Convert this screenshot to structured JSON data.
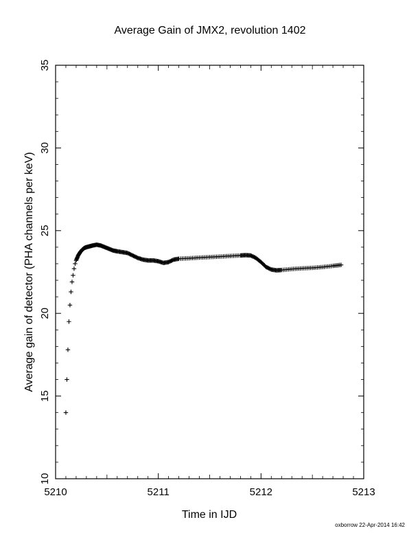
{
  "chart_data": {
    "type": "scatter",
    "title": "Average Gain of JMX2, revolution 1402",
    "xlabel": "Time in IJD",
    "ylabel": "Average gain of detector (PHA channels per keV)",
    "xlim": [
      5210,
      5213
    ],
    "ylim": [
      10,
      35
    ],
    "x_ticks": [
      5210,
      5211,
      5212,
      5213
    ],
    "y_ticks": [
      10,
      15,
      20,
      25,
      30,
      35
    ],
    "x_tick_labels": [
      "5210",
      "5211",
      "5212",
      "5213"
    ],
    "y_tick_labels": [
      "10",
      "15",
      "20",
      "25",
      "30",
      "35"
    ],
    "grid": false,
    "marker": "+",
    "series": [
      {
        "x": [
          5210.1,
          5210.11,
          5210.12,
          5210.13,
          5210.14,
          5210.15,
          5210.16,
          5210.17,
          5210.18,
          5210.19,
          5210.2,
          5210.22,
          5210.24,
          5210.26,
          5210.28,
          5210.3,
          5210.33,
          5210.36,
          5210.4,
          5210.44,
          5210.48,
          5210.52,
          5210.56,
          5210.6,
          5210.65,
          5210.7,
          5210.75,
          5210.8,
          5210.85,
          5210.9,
          5210.95,
          5211.0,
          5211.05,
          5211.1,
          5211.15,
          5211.2,
          5211.3,
          5211.4,
          5211.5,
          5211.6,
          5211.7,
          5211.8,
          5211.85,
          5211.9,
          5211.95,
          5212.0,
          5212.05,
          5212.1,
          5212.15,
          5212.2,
          5212.3,
          5212.4,
          5212.5,
          5212.6,
          5212.7,
          5212.78
        ],
        "y": [
          14.0,
          16.0,
          17.8,
          19.5,
          20.5,
          21.3,
          21.9,
          22.3,
          22.7,
          23.0,
          23.2,
          23.5,
          23.7,
          23.85,
          23.95,
          24.0,
          24.05,
          24.1,
          24.15,
          24.1,
          24.0,
          23.9,
          23.8,
          23.75,
          23.7,
          23.65,
          23.5,
          23.35,
          23.25,
          23.2,
          23.2,
          23.15,
          23.05,
          23.1,
          23.25,
          23.3,
          23.33,
          23.37,
          23.4,
          23.43,
          23.47,
          23.5,
          23.52,
          23.5,
          23.35,
          23.1,
          22.8,
          22.65,
          22.6,
          22.62,
          22.68,
          22.72,
          22.75,
          22.8,
          22.87,
          22.93
        ]
      }
    ]
  },
  "footer": {
    "credit": "oxborrow 22-Apr-2014 16:42"
  }
}
